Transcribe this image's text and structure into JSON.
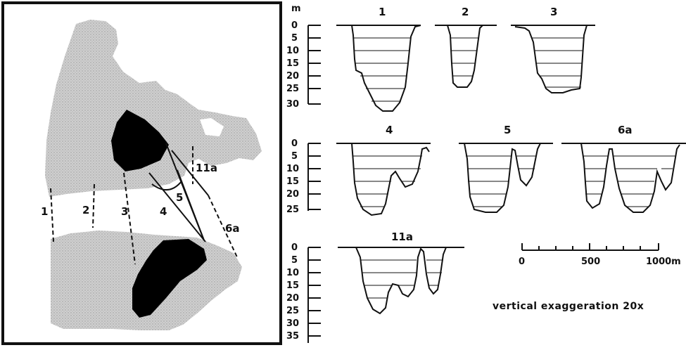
{
  "map": {
    "transect_labels": [
      "1",
      "2",
      "3",
      "4",
      "5",
      "11a",
      "6a"
    ]
  },
  "profiles": {
    "unit": "m",
    "row1": {
      "labels": [
        "1",
        "2",
        "3"
      ],
      "depth_ticks": [
        "0",
        "5",
        "10",
        "15",
        "20",
        "25",
        "30"
      ]
    },
    "row2": {
      "labels": [
        "4",
        "5",
        "6a"
      ],
      "depth_ticks": [
        "0",
        "5",
        "10",
        "15",
        "20",
        "25"
      ]
    },
    "row3": {
      "labels": [
        "11a"
      ],
      "depth_ticks": [
        "0",
        "5",
        "10",
        "15",
        "20",
        "25",
        "30",
        "35"
      ]
    }
  },
  "scale_bar": {
    "ticks": [
      "0",
      "500",
      "1000m"
    ]
  },
  "caption": "vertical exaggeration 20x"
}
